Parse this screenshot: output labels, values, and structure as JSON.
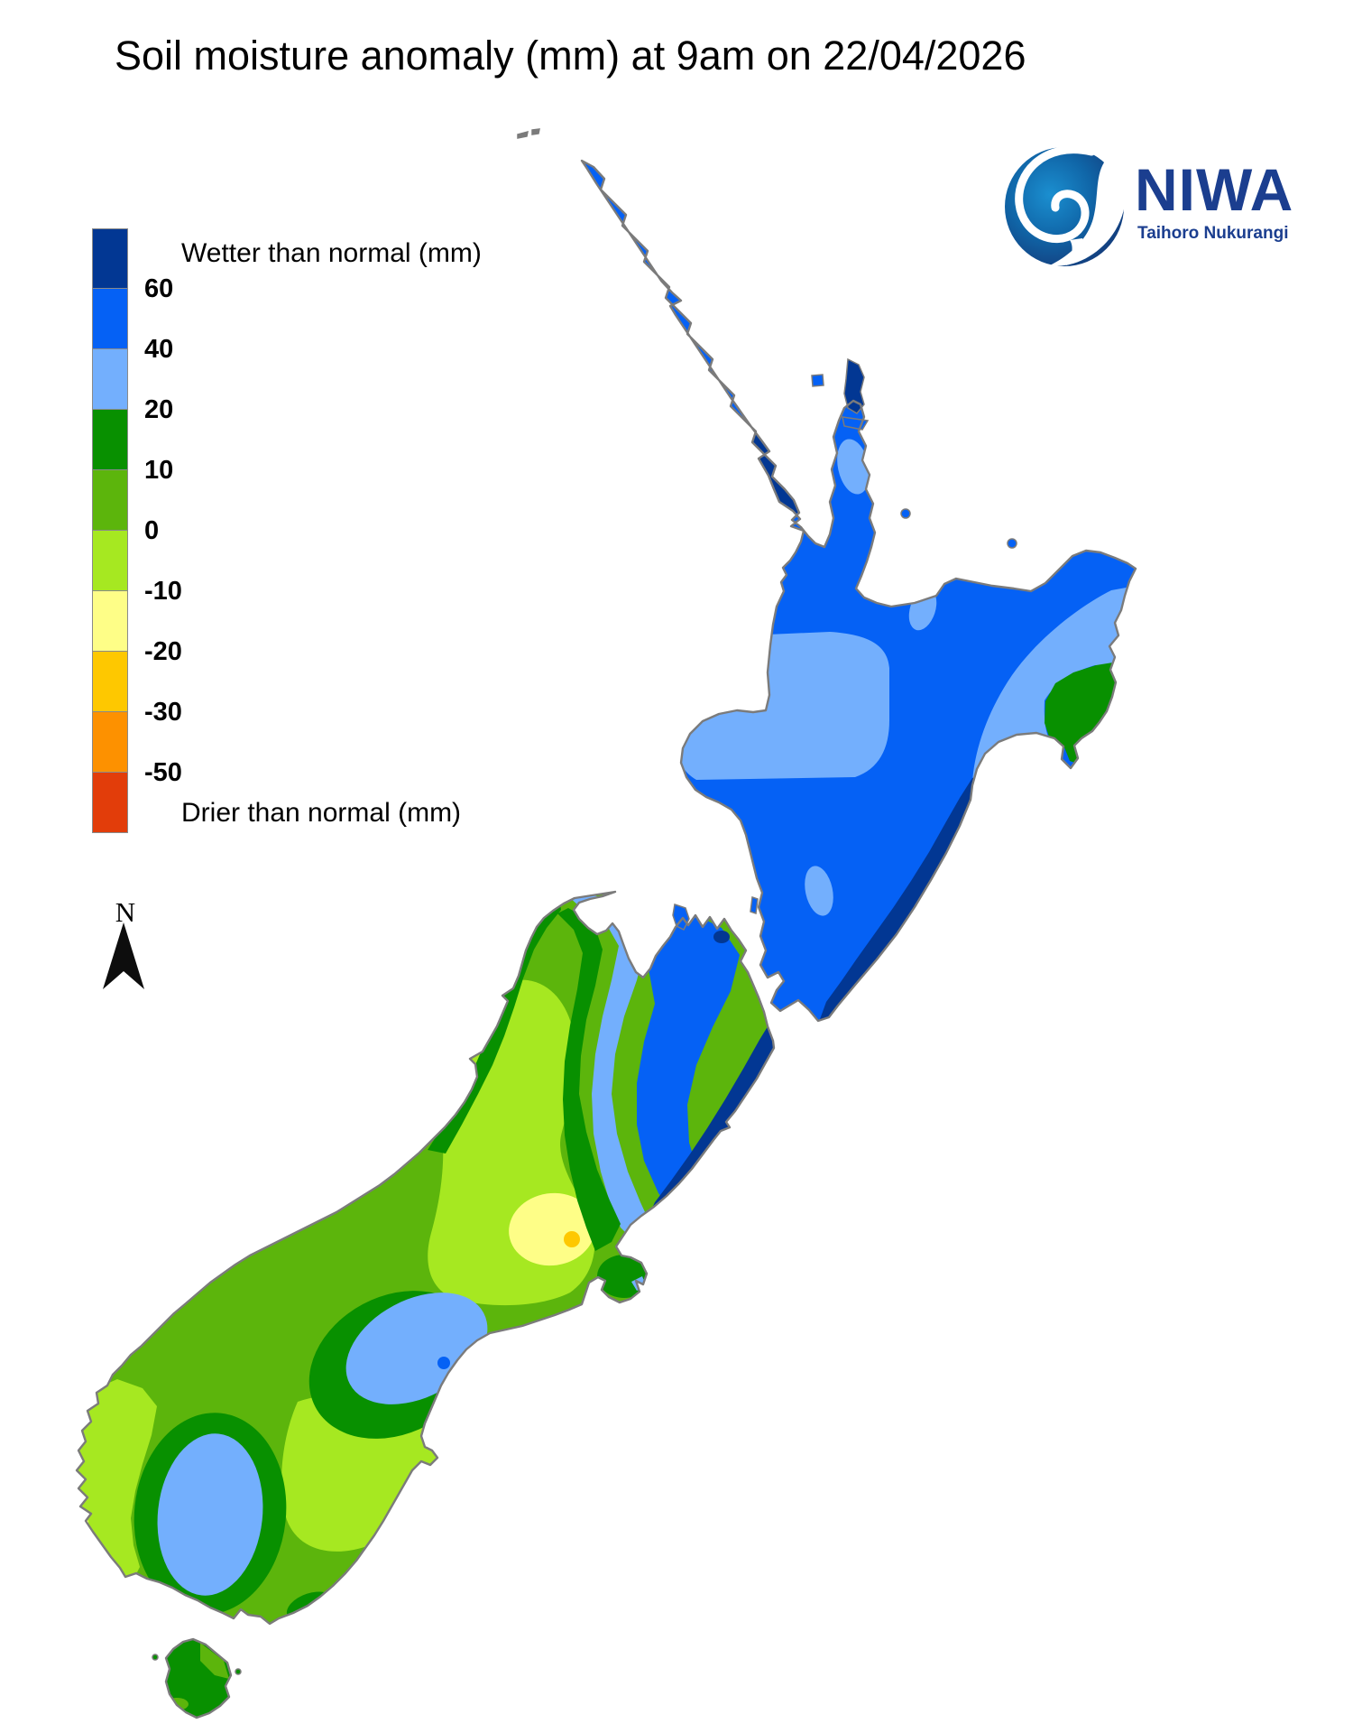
{
  "title": {
    "text": "Soil moisture anomaly (mm) at 9am on 22/04/2026"
  },
  "logo": {
    "name": "NIWA",
    "tagline": "Taihoro Nukurangi",
    "navy": "#1B3E8F",
    "sphere_dark": "#142F6E",
    "sphere_mid": "#1066A8",
    "sphere_light": "#1B8FD0"
  },
  "legend": {
    "wetter_label": "Wetter than normal (mm)",
    "drier_label": "Drier than normal (mm)",
    "stops": [
      "#023793",
      "#0561F5",
      "#73AFFD",
      "#089000",
      "#5CB50C",
      "#A6E821",
      "#FEFE87",
      "#FEC800",
      "#FD9100",
      "#E23D0A"
    ],
    "ticks": [
      "60",
      "40",
      "20",
      "10",
      "0",
      "-10",
      "-20",
      "-30",
      "-50"
    ]
  },
  "compass": {
    "label": "N"
  },
  "map": {
    "colors": {
      "navy": "#023793",
      "blue": "#0561F5",
      "lightblue": "#73AFFD",
      "green": "#089000",
      "midgreen": "#5CB50C",
      "lightgreen": "#A6E821",
      "paleyellow": "#FEFE87",
      "gold": "#FEC800",
      "orange": "#FD9100",
      "red": "#E23D0A",
      "coast": "#7B7B7B"
    }
  }
}
